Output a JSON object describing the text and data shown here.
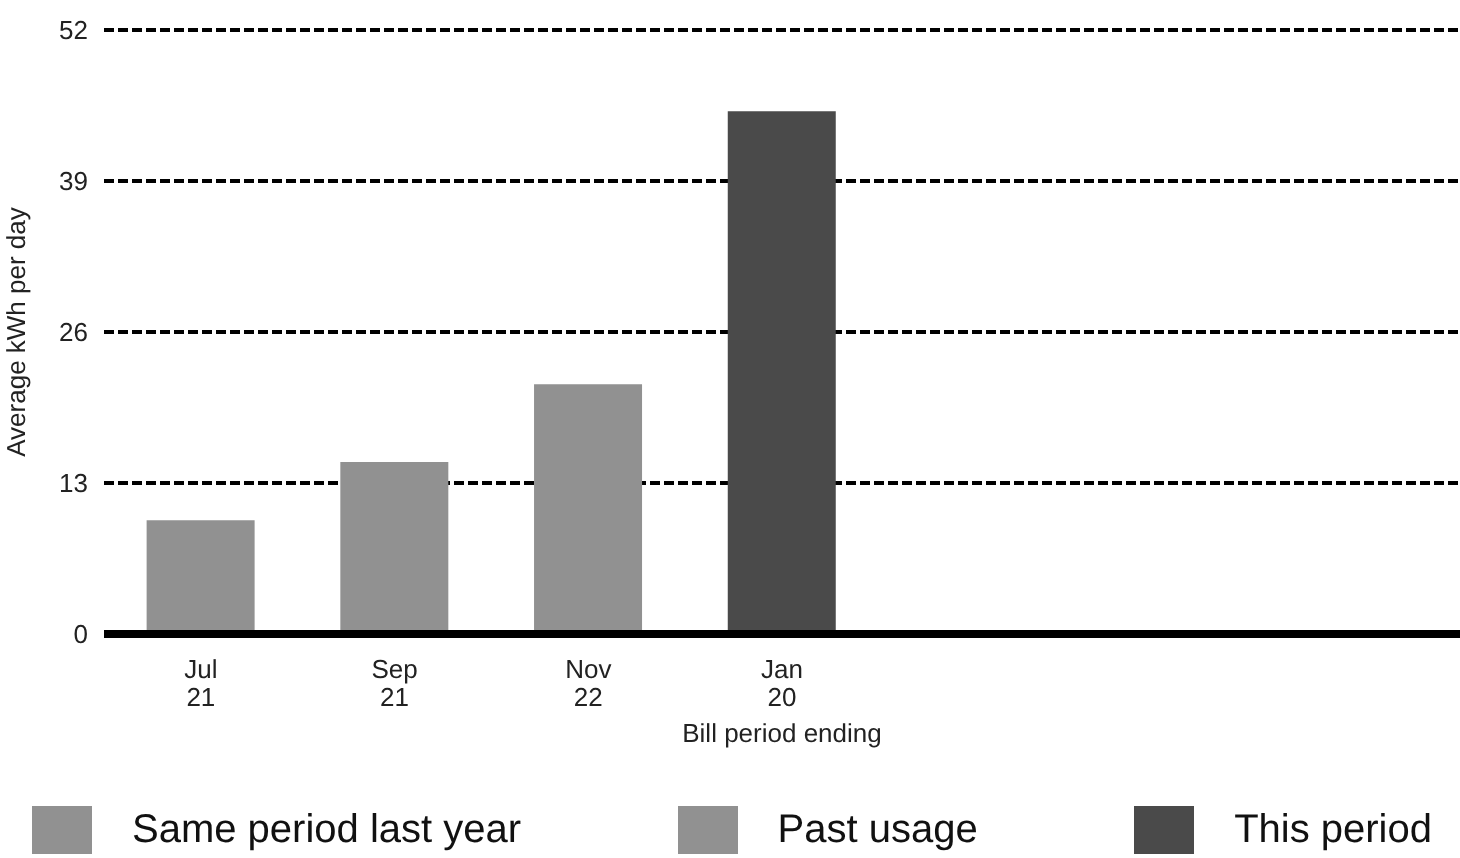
{
  "chart_data": {
    "type": "bar",
    "xlabel": "Bill period ending",
    "ylabel": "Average kWh per day",
    "categories": [
      "Jul\n21",
      "Sep\n21",
      "Nov\n22",
      "Jan\n20",
      null,
      null,
      null
    ],
    "series": [
      {
        "name": "Same period last year",
        "color": "#919191",
        "values": [
          null,
          null,
          null,
          null,
          null,
          null,
          null
        ]
      },
      {
        "name": "Past usage",
        "color": "#919191",
        "values": [
          9.8,
          14.8,
          21.5,
          null,
          null,
          null,
          null
        ]
      },
      {
        "name": "This period",
        "color": "#4a4a4a",
        "values": [
          null,
          null,
          null,
          45.0,
          null,
          null,
          null
        ]
      }
    ],
    "stacked": true,
    "ylim": [
      0,
      52
    ],
    "yticks": [
      0,
      13,
      26,
      39,
      52
    ],
    "grid": "y",
    "legend": "bottom"
  }
}
